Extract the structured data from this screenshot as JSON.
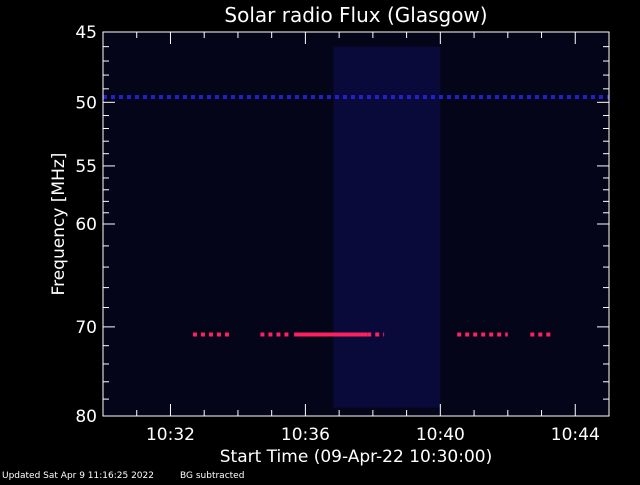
{
  "chart_data": {
    "type": "heatmap",
    "title": "Solar radio Flux (Glasgow)",
    "xlabel": "Start Time (09-Apr-22 10:30:00)",
    "ylabel": "Frequency [MHz]",
    "x_ticks": [
      "10:32",
      "10:36",
      "10:40",
      "10:44"
    ],
    "y_ticks": [
      "45",
      "50",
      "55",
      "60",
      "70",
      "80"
    ],
    "y_tick_values": [
      45,
      50,
      55,
      60,
      70,
      80
    ],
    "x_range": [
      "10:30:00",
      "10:45:00"
    ],
    "y_range": [
      45,
      80
    ],
    "features": [
      {
        "kind": "line",
        "freq_mhz": 49.6,
        "from": "10:30:00",
        "to": "10:45:00",
        "color": "#2020d0",
        "dashed": true
      },
      {
        "kind": "line",
        "freq_mhz": 70.8,
        "from": "10:32:40",
        "to": "10:33:50",
        "color": "#ff2060",
        "dashed": true
      },
      {
        "kind": "line",
        "freq_mhz": 70.8,
        "from": "10:34:40",
        "to": "10:35:30",
        "color": "#ff2060",
        "dashed": true
      },
      {
        "kind": "line",
        "freq_mhz": 70.8,
        "from": "10:35:40",
        "to": "10:37:50",
        "color": "#ff2060",
        "dashed": false
      },
      {
        "kind": "line",
        "freq_mhz": 70.8,
        "from": "10:37:50",
        "to": "10:38:20",
        "color": "#ff2060",
        "dashed": true
      },
      {
        "kind": "line",
        "freq_mhz": 70.8,
        "from": "10:40:30",
        "to": "10:42:00",
        "color": "#ff2060",
        "dashed": true
      },
      {
        "kind": "line",
        "freq_mhz": 70.8,
        "from": "10:42:40",
        "to": "10:43:20",
        "color": "#ff2060",
        "dashed": true
      },
      {
        "kind": "band",
        "freq_from": 46,
        "freq_to": 79,
        "from": "10:36:50",
        "to": "10:40:00",
        "color": "#0a0a3a"
      }
    ]
  },
  "footer": {
    "updated": "Updated Sat Apr  9 11:16:25 2022",
    "bg": "BG subtracted"
  },
  "colors": {
    "background": "#000000",
    "plot_bg": "#05051a",
    "axis": "#ffffff",
    "baseline": "#2020d0",
    "burst": "#ff2060"
  }
}
